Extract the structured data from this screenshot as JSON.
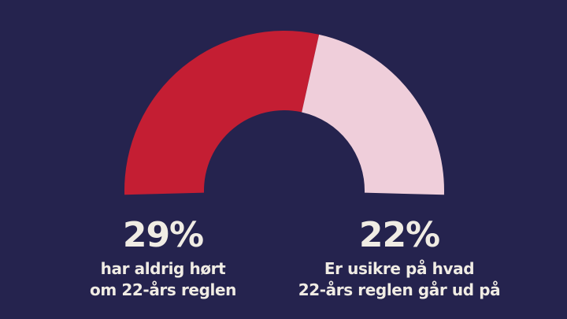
{
  "colors": {
    "background": "#25234E",
    "text": "#F0ECE4"
  },
  "chart_data": {
    "type": "pie",
    "variant": "half-donut-gauge",
    "title": "",
    "legend": "none",
    "series": [
      {
        "name": "har aldrig hørt om 22-års reglen",
        "value": 29,
        "display": "29%",
        "color": "#C41E33"
      },
      {
        "name": "Er usikre på hvad 22-års reglen går ud på",
        "value": 22,
        "display": "22%",
        "color": "#EFCEDA"
      }
    ],
    "start_angle_deg": 181.5,
    "sweep_deg": 183,
    "values_sum_to_sweep": true
  },
  "labels": {
    "left": {
      "percent": "29%",
      "line1": "har aldrig hørt",
      "line2": "om 22-års reglen"
    },
    "right": {
      "percent": "22%",
      "line1": "Er usikre på hvad",
      "line2": "22-års reglen går ud på"
    }
  }
}
